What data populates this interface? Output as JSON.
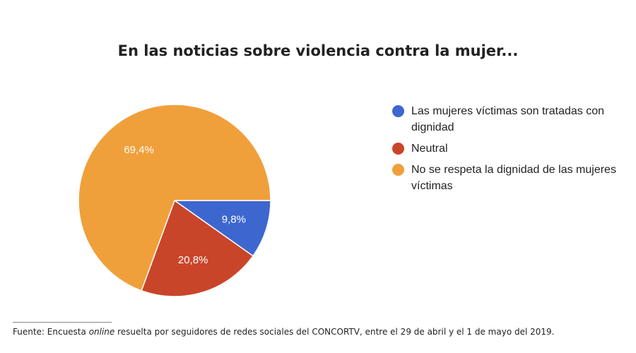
{
  "chart_data": {
    "type": "pie",
    "title": "En las noticias sobre violencia contra la mujer...",
    "slices": [
      {
        "label": "Las mujeres víctimas son tratadas con dignidad",
        "value": 9.8,
        "value_label": "9,8%",
        "color": "#3d67cf"
      },
      {
        "label": "Neutral",
        "value": 20.8,
        "value_label": "20,8%",
        "color": "#c9452a"
      },
      {
        "label": "No se respeta la dignidad de las mujeres víctimas",
        "value": 69.4,
        "value_label": "69,4%",
        "color": "#f0a03a"
      }
    ],
    "legend_position": "right"
  },
  "source": {
    "prefix": "Fuente: Encuesta ",
    "italic": "online",
    "suffix": " resuelta por seguidores de redes sociales del CONCORTV, entre el 29 de abril y el 1 de mayo del 2019."
  }
}
